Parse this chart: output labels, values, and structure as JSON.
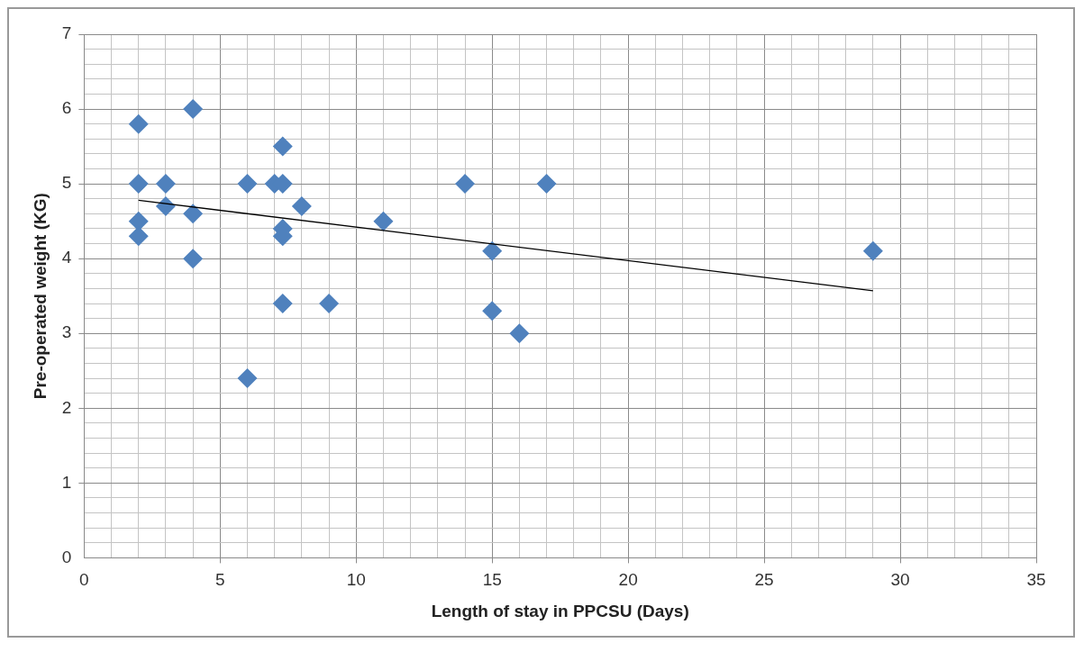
{
  "chart_data": {
    "type": "scatter",
    "xlabel": "Length of stay in PPCSU (Days)",
    "ylabel": "Pre-operated weight (KG)",
    "xlim": [
      0,
      35
    ],
    "ylim": [
      0,
      7
    ],
    "xticks": [
      0,
      {
        "value": 1,
        "label": null
      },
      {
        "value": 2,
        "label": null
      },
      {
        "value": 3,
        "label": null
      },
      {
        "value": 4,
        "label": null
      },
      5,
      {
        "value": 6,
        "label": null
      },
      {
        "value": 7,
        "label": null
      },
      {
        "value": 8,
        "label": null
      },
      {
        "value": 9,
        "label": null
      },
      10,
      {
        "value": 11,
        "label": null
      },
      {
        "value": 12,
        "label": null
      },
      {
        "value": 13,
        "label": null
      },
      {
        "value": 14,
        "label": null
      },
      15,
      {
        "value": 16,
        "label": null
      },
      {
        "value": 17,
        "label": null
      },
      {
        "value": 18,
        "label": null
      },
      {
        "value": 19,
        "label": null
      },
      20,
      {
        "value": 21,
        "label": null
      },
      {
        "value": 22,
        "label": null
      },
      {
        "value": 23,
        "label": null
      },
      {
        "value": 24,
        "label": null
      },
      25,
      {
        "value": 26,
        "label": null
      },
      {
        "value": 27,
        "label": null
      },
      {
        "value": 28,
        "label": null
      },
      {
        "value": 29,
        "label": null
      },
      30,
      {
        "value": 31,
        "label": null
      },
      {
        "value": 32,
        "label": null
      },
      {
        "value": 33,
        "label": null
      },
      {
        "value": 34,
        "label": null
      },
      35
    ],
    "yticks": [
      0,
      {
        "value": 0.2,
        "label": null
      },
      {
        "value": 0.4,
        "label": null
      },
      {
        "value": 0.6,
        "label": null
      },
      {
        "value": 0.8,
        "label": null
      },
      1,
      {
        "value": 1.2,
        "label": null
      },
      {
        "value": 1.4,
        "label": null
      },
      {
        "value": 1.6,
        "label": null
      },
      {
        "value": 1.8,
        "label": null
      },
      2,
      {
        "value": 2.2,
        "label": null
      },
      {
        "value": 2.4,
        "label": null
      },
      {
        "value": 2.6,
        "label": null
      },
      {
        "value": 2.8,
        "label": null
      },
      3,
      {
        "value": 3.2,
        "label": null
      },
      {
        "value": 3.4,
        "label": null
      },
      {
        "value": 3.6,
        "label": null
      },
      {
        "value": 3.8,
        "label": null
      },
      4,
      {
        "value": 4.2,
        "label": null
      },
      {
        "value": 4.4,
        "label": null
      },
      {
        "value": 4.6,
        "label": null
      },
      {
        "value": 4.8,
        "label": null
      },
      5,
      {
        "value": 5.2,
        "label": null
      },
      {
        "value": 5.4,
        "label": null
      },
      {
        "value": 5.6,
        "label": null
      },
      {
        "value": 5.8,
        "label": null
      },
      6,
      {
        "value": 6.2,
        "label": null
      },
      {
        "value": 6.4,
        "label": null
      },
      {
        "value": 6.6,
        "label": null
      },
      {
        "value": 6.8,
        "label": null
      },
      7
    ],
    "grid": true,
    "legend": false,
    "series": [
      {
        "type": "scatter",
        "marker": "diamond",
        "color": "#4f81bd",
        "x": [
          2,
          4,
          2,
          3,
          3,
          2,
          2,
          4,
          4,
          6,
          6,
          7,
          7.3,
          7.3,
          7.3,
          7.3,
          7.3,
          8,
          9,
          11,
          14,
          17,
          15,
          15,
          16,
          29
        ],
        "values": [
          5.8,
          6.0,
          5.0,
          5.0,
          4.7,
          4.5,
          4.3,
          4.6,
          4.0,
          5.0,
          2.4,
          5.0,
          5.5,
          5.0,
          4.4,
          4.3,
          3.4,
          4.7,
          3.4,
          4.5,
          5.0,
          5.0,
          4.1,
          3.3,
          3.0,
          4.1
        ]
      },
      {
        "type": "line",
        "marker": "none",
        "color": "#000000",
        "x": [
          2,
          29
        ],
        "values": [
          4.78,
          3.57
        ]
      }
    ]
  }
}
